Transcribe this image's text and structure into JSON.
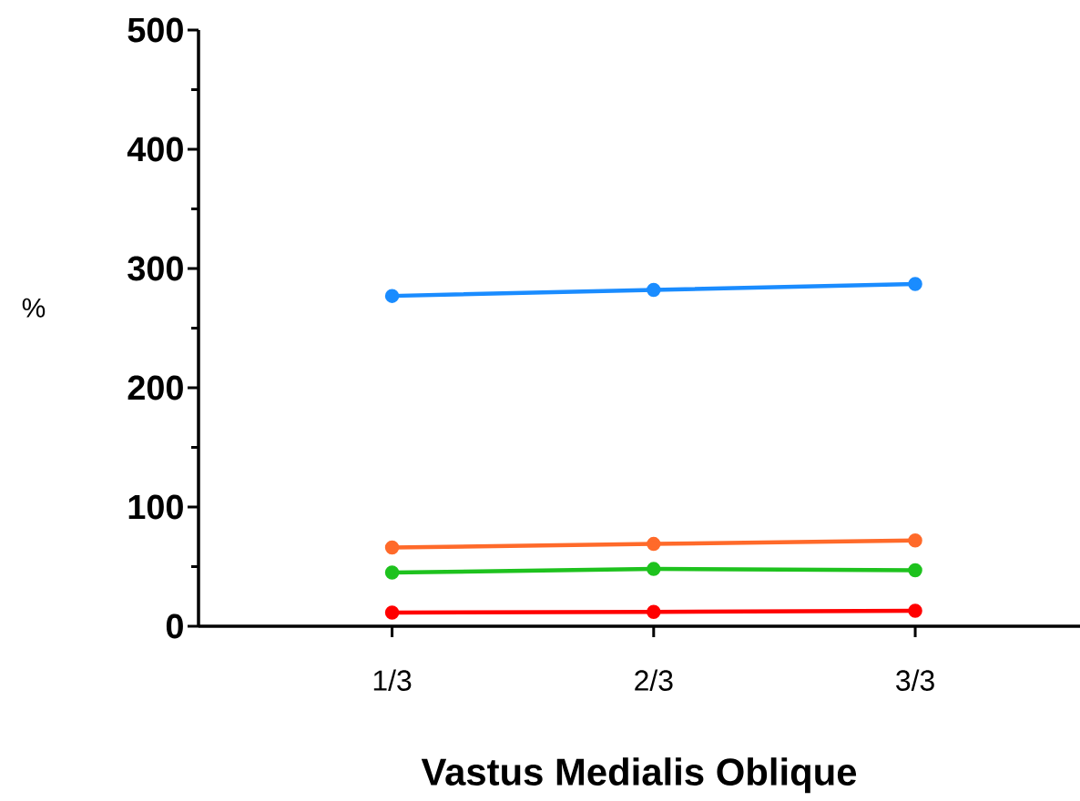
{
  "chart_data": {
    "type": "line",
    "xlabel": "Vastus Medialis Oblique",
    "ylabel": "%",
    "categories": [
      "1/3",
      "2/3",
      "3/3"
    ],
    "series": [
      {
        "color": "#1a8cff",
        "values": [
          277,
          282,
          287
        ]
      },
      {
        "color": "#ff6a2a",
        "values": [
          66,
          69,
          72
        ]
      },
      {
        "color": "#1ec21e",
        "values": [
          45,
          48,
          47
        ]
      },
      {
        "color": "#ff0000",
        "values": [
          11.5,
          12,
          13
        ]
      }
    ],
    "ylim": [
      0,
      500
    ],
    "yticks": [
      0,
      100,
      200,
      300,
      400,
      500
    ],
    "marker": "circle",
    "line_style": "solid"
  }
}
